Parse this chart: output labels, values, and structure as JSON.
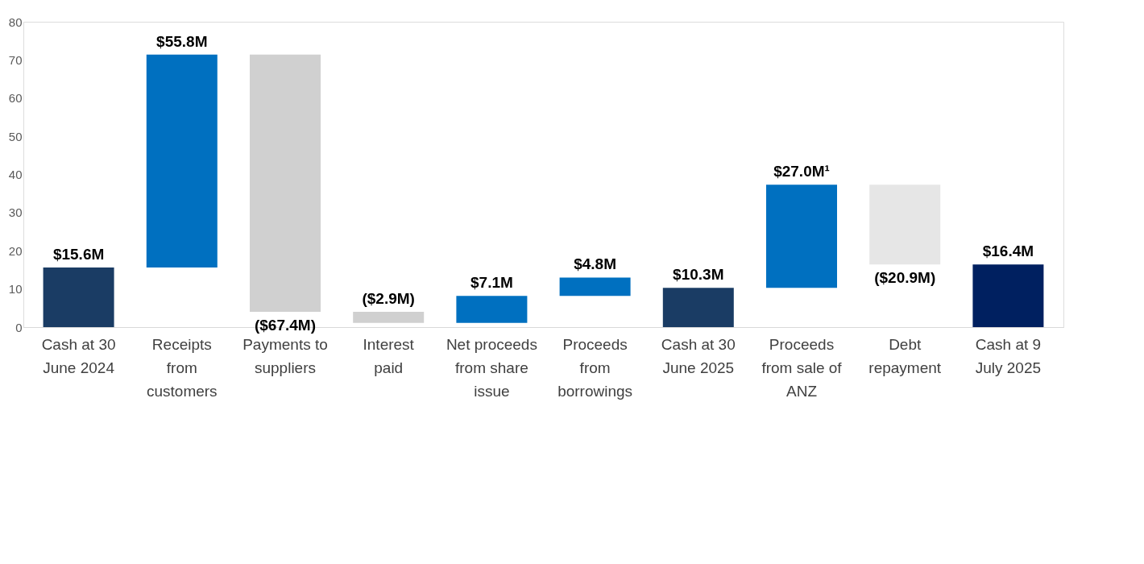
{
  "chart_data": {
    "type": "bar",
    "categories": [
      "Cash at 30 June 2024",
      "Receipts from customers",
      "Payments to suppliers",
      "Interest paid",
      "Net proceeds from share issue",
      "Proceeds from borrowings",
      "Cash at 30 June 2025",
      "Proceeds from sale of ANZ",
      "Debt repayment",
      "Cash at 9 July 2025"
    ],
    "values": [
      15.6,
      55.8,
      -67.4,
      -2.9,
      7.1,
      4.8,
      10.3,
      27.0,
      -20.9,
      16.4
    ],
    "base": [
      0,
      15.6,
      71.4,
      4.0,
      1.1,
      8.2,
      0,
      10.3,
      37.3,
      0
    ],
    "colors": [
      "#1a3c64",
      "#0070c0",
      "#d0d0d0",
      "#d0d0d0",
      "#0070c0",
      "#0070c0",
      "#1a3c64",
      "#0070c0",
      "#e6e6e6",
      "#002060"
    ],
    "value_labels": [
      "$15.6M",
      "$55.8M",
      "($67.4M)",
      "($2.9M)",
      "$7.1M",
      "$4.8M",
      "$10.3M",
      "$27.0M¹",
      "($20.9M)",
      "$16.4M"
    ],
    "ylim": [
      0,
      80
    ],
    "yticks": [
      0,
      10,
      20,
      30,
      40,
      50,
      60,
      70,
      80
    ],
    "grid": false
  }
}
